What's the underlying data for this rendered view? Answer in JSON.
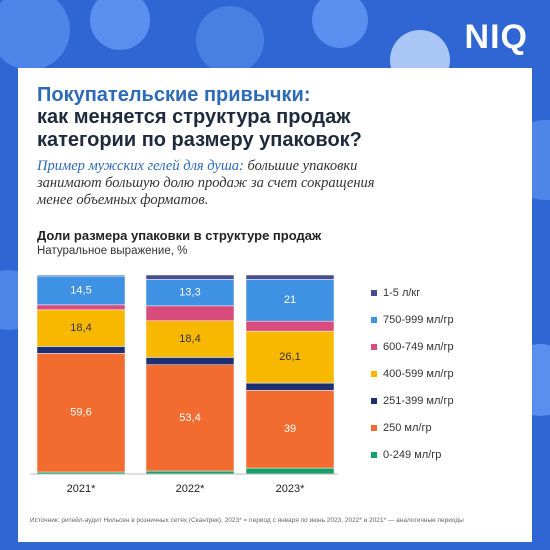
{
  "logo": "NIQ",
  "header": {
    "title_line1": "Покупательские привычки:",
    "title_line2": "как меняется структура продаж категории по размеру упаковок?",
    "lead_emph": "Пример мужских гелей для душа:",
    "lead_rest": "большие упаковки занимают большую долю продаж за счет сокращения менее объемных форматов."
  },
  "chart_data": {
    "type": "stacked_bar",
    "title": "Доли размера упаковки в структуре продаж",
    "subtitle": "Натуральное выражение, %",
    "categories": [
      "2021*",
      "2022*",
      "2023*"
    ],
    "ylim": [
      0,
      100
    ],
    "series": [
      {
        "name": "0-249 мл/гр",
        "color": "#17a06b",
        "values": [
          1,
          1.5,
          3
        ],
        "value_labels": [
          null,
          null,
          null
        ]
      },
      {
        "name": "250 мл/гр",
        "color": "#f26c2f",
        "values": [
          59.6,
          53.4,
          39
        ],
        "value_labels": [
          "59,6",
          "53,4",
          "39"
        ]
      },
      {
        "name": "251-399 мл/гр",
        "color": "#1b2f72",
        "values": [
          3.5,
          3.7,
          3.7
        ],
        "value_labels": [
          null,
          null,
          null
        ]
      },
      {
        "name": "400-599 мл/гр",
        "color": "#f9b800",
        "values": [
          18.4,
          18.4,
          26.1
        ],
        "value_labels": [
          "18,4",
          "18,4",
          "26,1"
        ]
      },
      {
        "name": "600-749 мл/гр",
        "color": "#d94a7d",
        "values": [
          2.5,
          7.5,
          5
        ],
        "value_labels": [
          null,
          null,
          null
        ]
      },
      {
        "name": "750-999 мл/гр",
        "color": "#3f91e3",
        "values": [
          14.5,
          13.3,
          21
        ],
        "value_labels": [
          "14,5",
          "13,3",
          "21"
        ]
      },
      {
        "name": "1-5 л/кг",
        "color": "#4b4b8f",
        "values": [
          0.5,
          2.2,
          2.2
        ],
        "value_labels": [
          null,
          null,
          null
        ]
      }
    ]
  },
  "source": "Источник: ритейл-аудит Нильсен в розничных сетях (Скантрек), 2023* = период с января по июнь 2023, 2022* и 2021* — аналогичные периоды"
}
